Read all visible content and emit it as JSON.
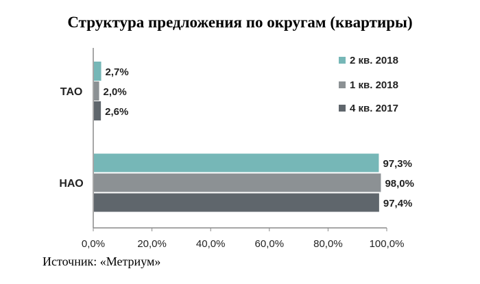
{
  "title": "Структура предложения по округам (квартиры)",
  "source": "Источник: «Метриум»",
  "colors": {
    "q2_2018": "#76b7b7",
    "q1_2018": "#8c9194",
    "q4_2017": "#5f666c",
    "axis": "#888888"
  },
  "chart_data": {
    "type": "bar",
    "orientation": "horizontal",
    "categories": [
      "ТАО",
      "НАО"
    ],
    "series": [
      {
        "name": "2 кв. 2018",
        "values": [
          2.7,
          97.3
        ],
        "labels": [
          "2,7%",
          "97,3%"
        ]
      },
      {
        "name": "1 кв. 2018",
        "values": [
          2.0,
          98.0
        ],
        "labels": [
          "2,0%",
          "98,0%"
        ]
      },
      {
        "name": "4 кв. 2017",
        "values": [
          2.6,
          97.4
        ],
        "labels": [
          "2,6%",
          "97,4%"
        ]
      }
    ],
    "xlim": [
      0,
      100
    ],
    "xticks": [
      "0,0%",
      "20,0%",
      "40,0%",
      "60,0%",
      "80,0%",
      "100,0%"
    ],
    "legend": "top-right",
    "grid": false
  }
}
